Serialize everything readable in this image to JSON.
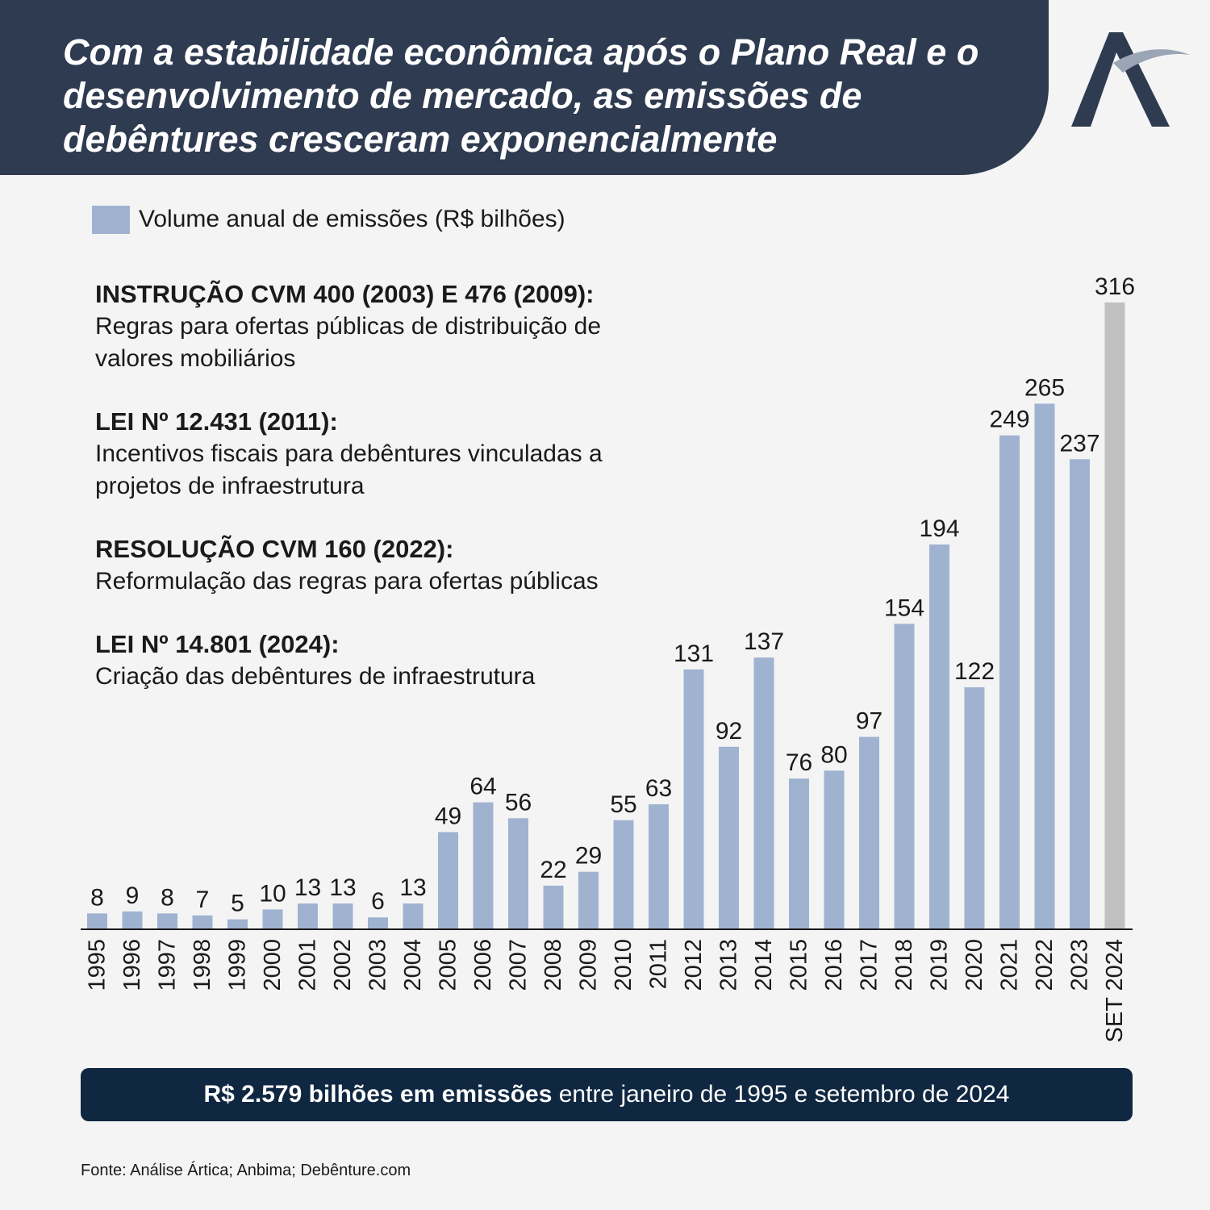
{
  "header": {
    "title": "Com a estabilidade econômica após o Plano Real e o desenvolvimento de mercado, as emissões de debêntures cresceram exponencialmente"
  },
  "logo": {
    "icon": "artica-a-logo-icon"
  },
  "colors": {
    "header_bg": "#2e3b50",
    "bar": "#9fb3d1",
    "bar_partial": "#c0c0c0",
    "banner_bg": "#0f2740"
  },
  "legend": {
    "label": "Volume anual de emissões (R$ bilhões)"
  },
  "notes": [
    {
      "title": "INSTRUÇÃO CVM 400 (2003) E 476 (2009):",
      "text": "Regras para ofertas públicas de distribuição de valores mobiliários"
    },
    {
      "title": "LEI Nº 12.431 (2011):",
      "text": "Incentivos fiscais para debêntures vinculadas a projetos de infraestrutura"
    },
    {
      "title": "RESOLUÇÃO CVM 160 (2022):",
      "text": "Reformulação das regras para ofertas públicas"
    },
    {
      "title": "LEI Nº 14.801 (2024):",
      "text": "Criação das debêntures de infraestrutura"
    }
  ],
  "chart_data": {
    "type": "bar",
    "series": [
      {
        "name": "Volume anual de emissões (R$ bilhões)",
        "values": [
          8,
          9,
          8,
          7,
          5,
          10,
          13,
          13,
          6,
          13,
          49,
          64,
          56,
          22,
          29,
          55,
          63,
          131,
          92,
          137,
          76,
          80,
          97,
          154,
          194,
          122,
          249,
          265,
          237,
          316
        ]
      }
    ],
    "categories": [
      "1995",
      "1996",
      "1997",
      "1998",
      "1999",
      "2000",
      "2001",
      "2002",
      "2003",
      "2004",
      "2005",
      "2006",
      "2007",
      "2008",
      "2009",
      "2010",
      "2011",
      "2012",
      "2013",
      "2014",
      "2015",
      "2016",
      "2017",
      "2018",
      "2019",
      "2020",
      "2021",
      "2022",
      "2023",
      "SET 2024"
    ],
    "highlight_last": true,
    "ylim": [
      0,
      316
    ],
    "legend": "top-left",
    "grid": false
  },
  "banner": {
    "bold": "R$ 2.579 bilhões em emissões",
    "rest": " entre janeiro de 1995 e setembro de 2024"
  },
  "source": "Fonte: Análise Ártica; Anbima; Debênture.com"
}
